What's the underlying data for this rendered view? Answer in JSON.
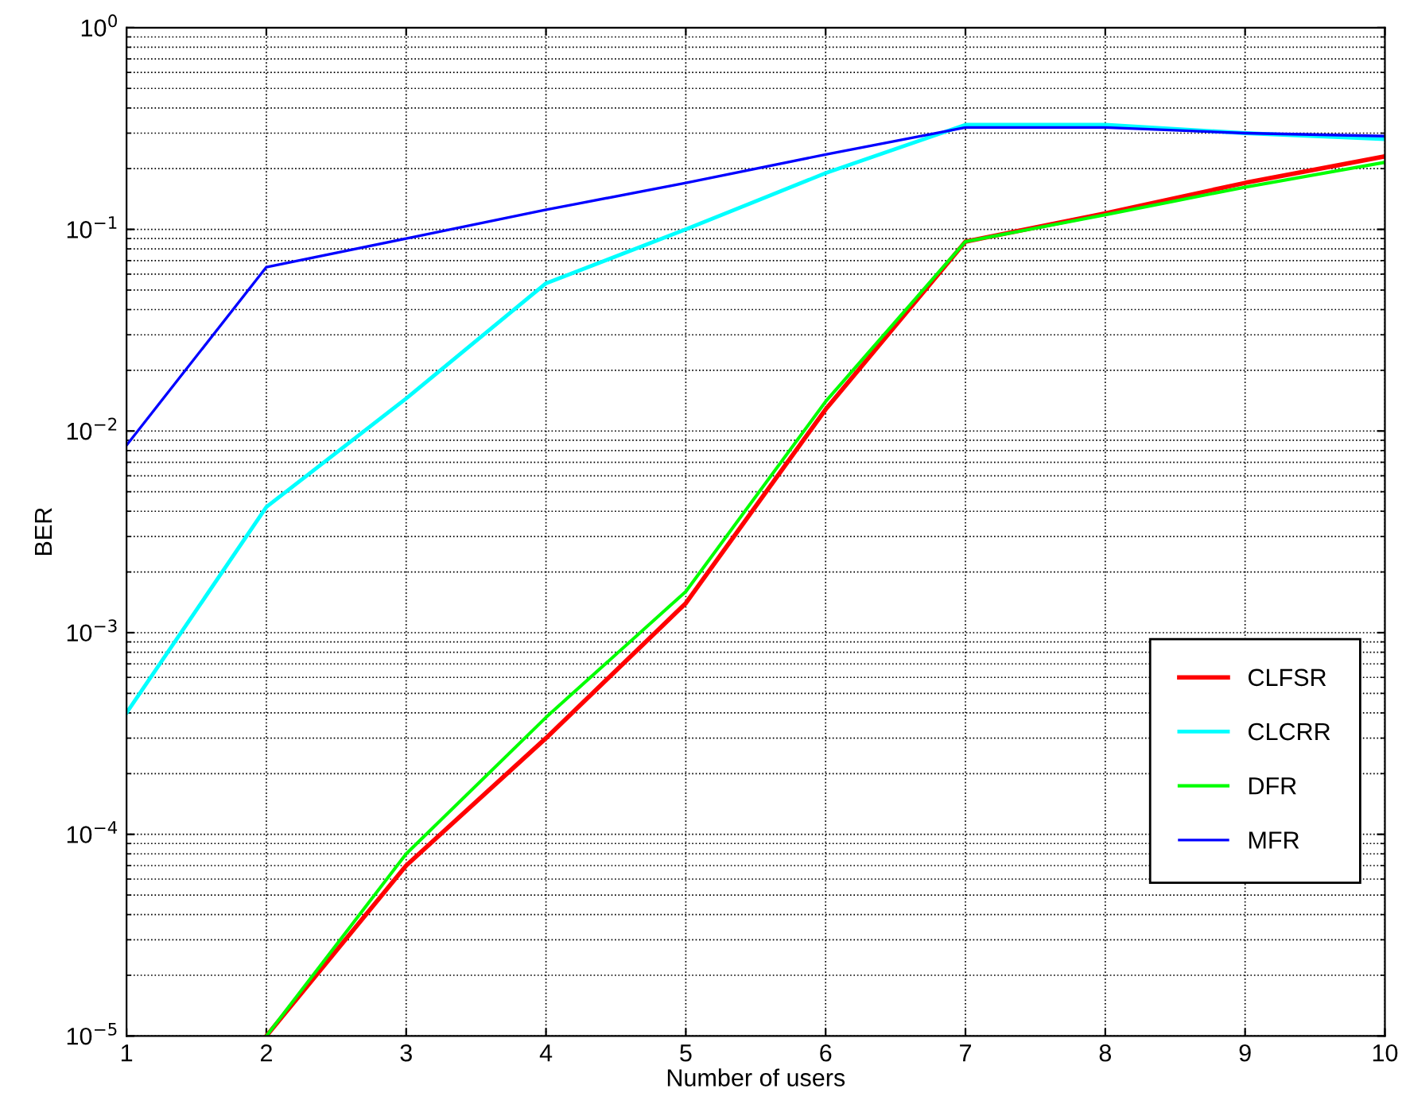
{
  "chart_data": {
    "type": "line",
    "xlabel": "Number of users",
    "ylabel": "BER",
    "log": "y",
    "grid": true,
    "legend": "bottom right",
    "marker": "none",
    "line_style": "solid",
    "x": [
      1,
      2,
      3,
      4,
      5,
      6,
      7,
      8,
      9,
      10
    ],
    "xlim": [
      1,
      10
    ],
    "xticks": [
      1,
      2,
      3,
      4,
      5,
      6,
      7,
      8,
      9,
      10
    ],
    "ylim": [
      1e-05,
      1
    ],
    "yticks": [
      {
        "value": 1e-05,
        "label": "10$^{−5}$"
      },
      {
        "value": 0.0001,
        "label": "10$^{−4}$"
      },
      {
        "value": 0.001,
        "label": "10$^{−3}$"
      },
      {
        "value": 0.01,
        "label": "10$^{−2}$"
      },
      {
        "value": 0.1,
        "label": "10$^{−1}$"
      },
      {
        "value": 1,
        "label": "10$^{0}$"
      }
    ],
    "series": [
      {
        "name": "CLFSR",
        "color": "#ff0000",
        "values": [
          null,
          1e-05,
          7e-05,
          0.0003,
          0.0014,
          0.0128,
          0.087,
          0.12,
          0.17,
          0.23
        ]
      },
      {
        "name": "CLCRR",
        "color": "#00ffff",
        "values": [
          0.0004,
          0.0042,
          0.0145,
          0.054,
          0.1,
          0.19,
          0.33,
          0.33,
          0.3,
          0.28
        ]
      },
      {
        "name": "DFR",
        "color": "#00ff00",
        "values": [
          null,
          1e-05,
          8e-05,
          0.00038,
          0.0016,
          0.014,
          0.087,
          0.118,
          0.162,
          0.215
        ]
      },
      {
        "name": "MFR",
        "color": "#0000ff",
        "values": [
          0.0085,
          0.065,
          0.09,
          0.125,
          0.17,
          0.235,
          0.32,
          0.32,
          0.3,
          0.29
        ]
      }
    ]
  }
}
